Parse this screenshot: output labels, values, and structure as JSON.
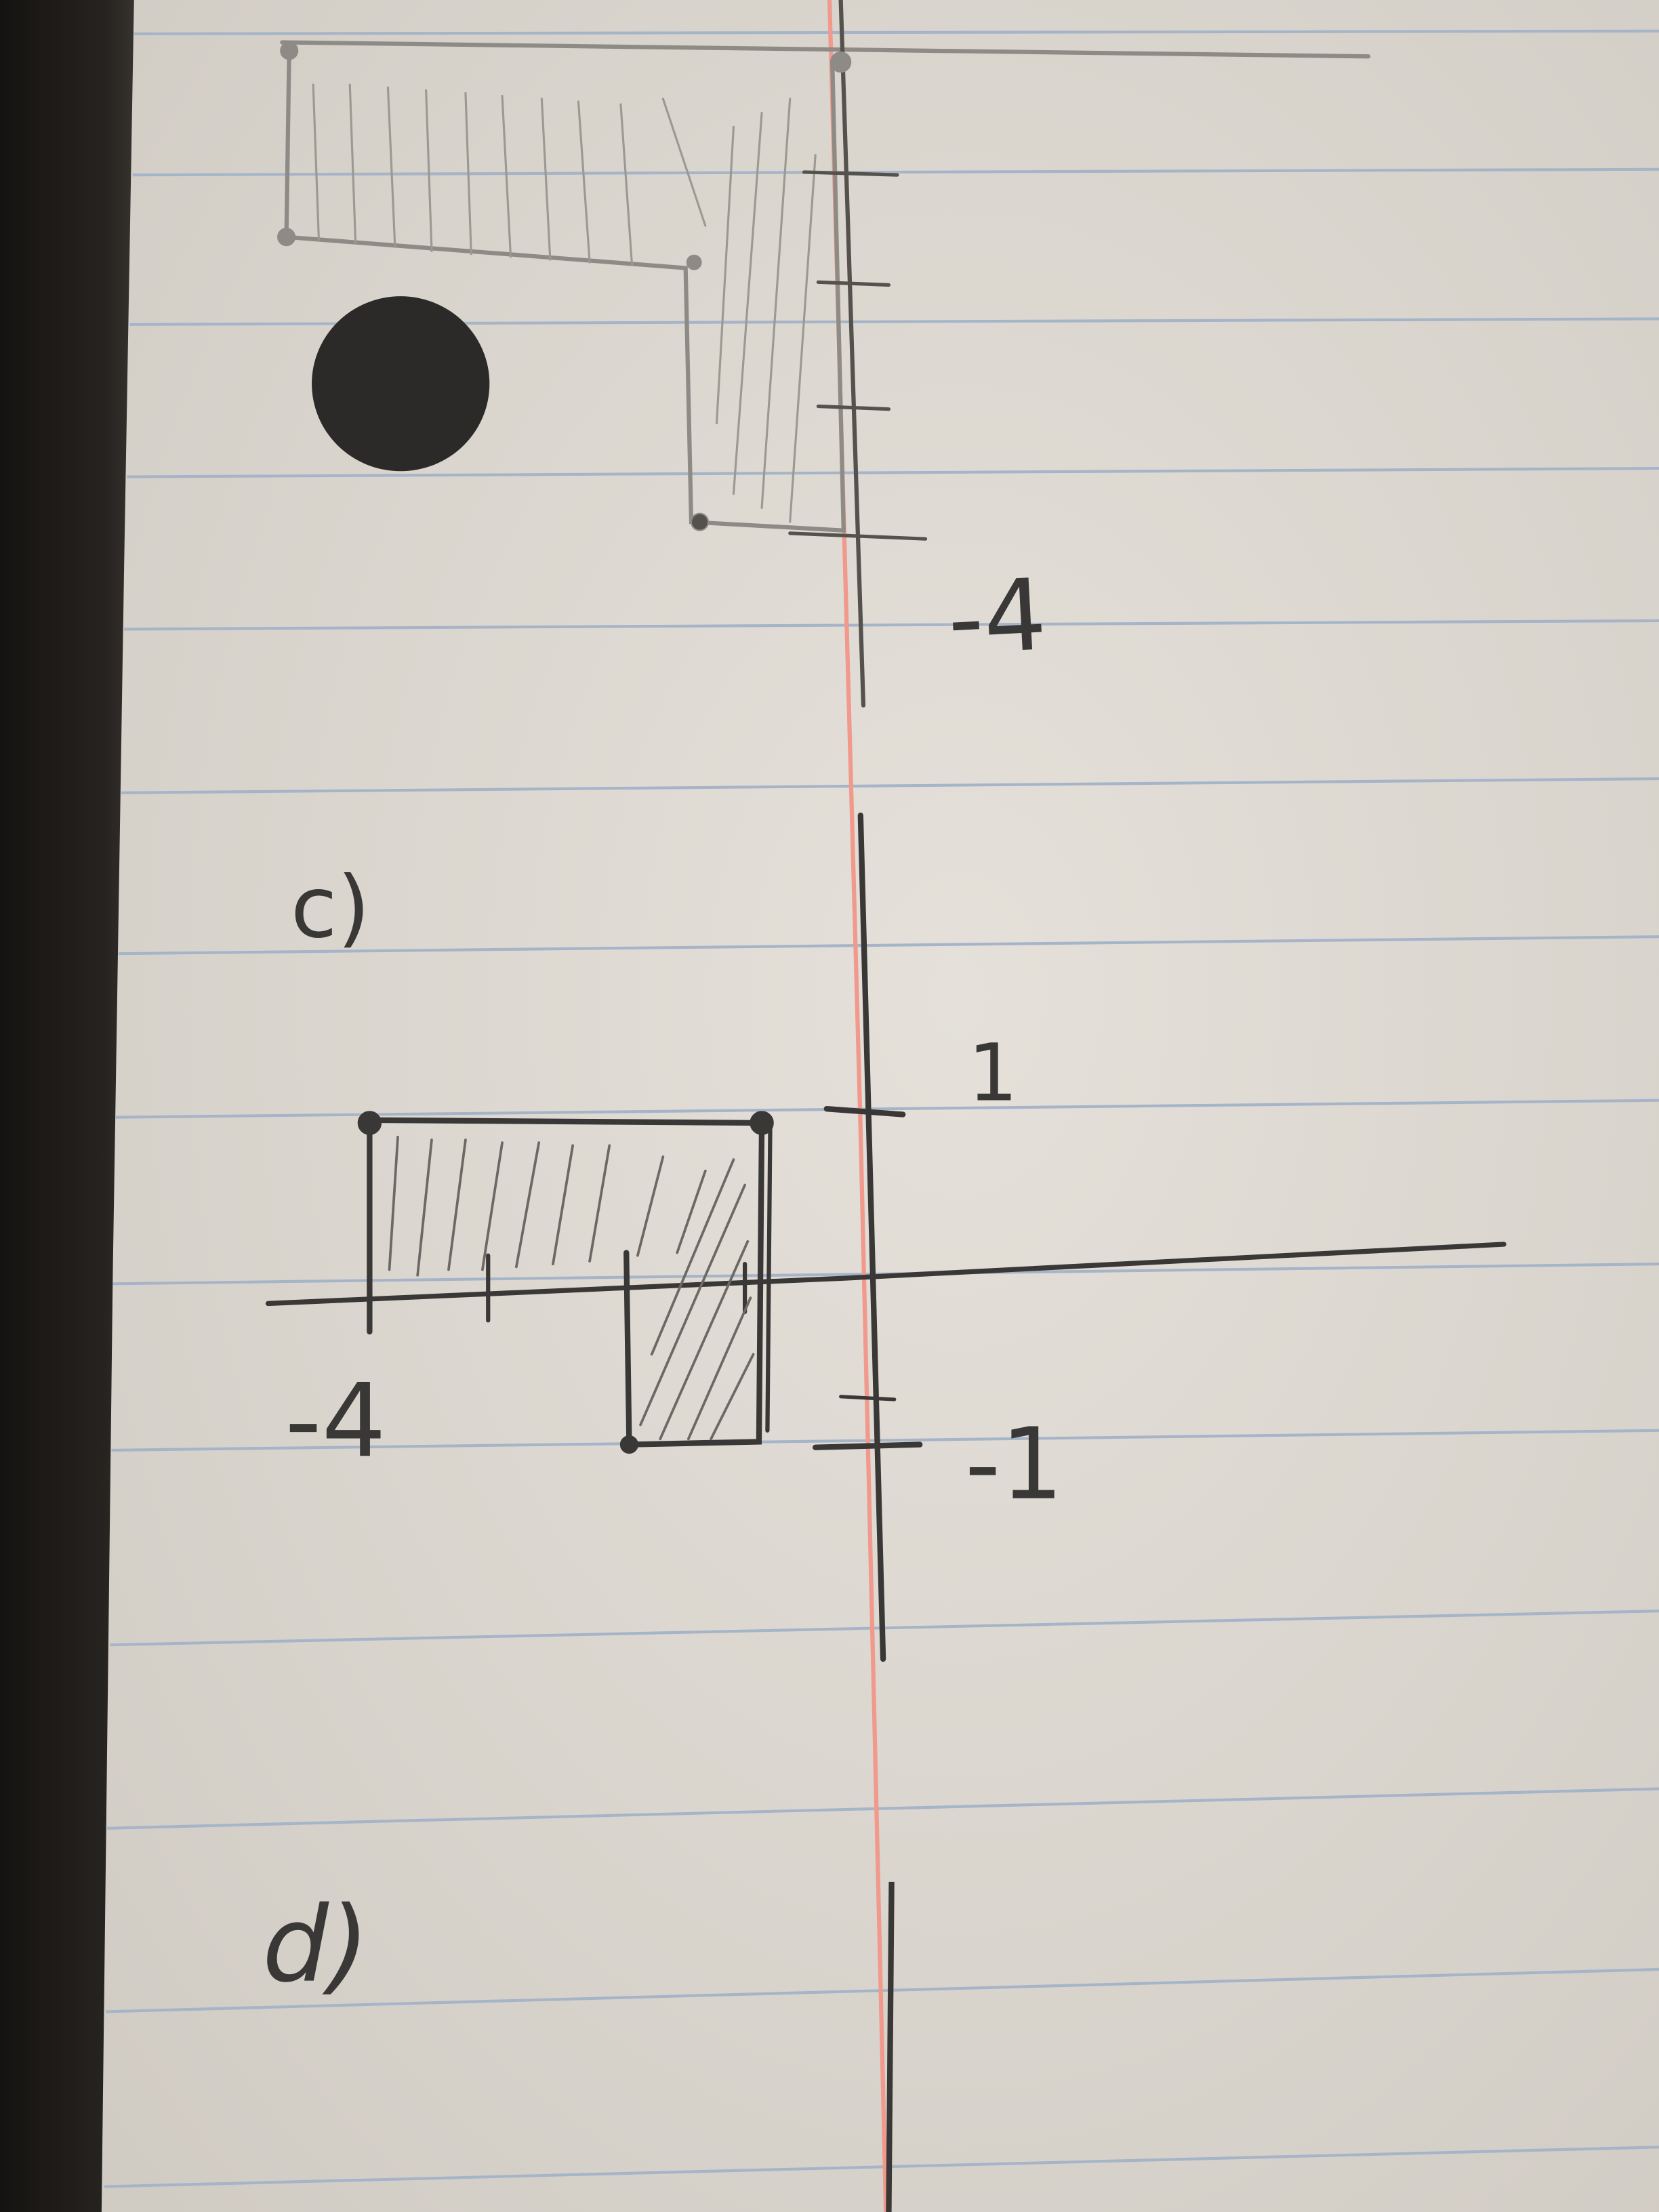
{
  "photo": {
    "colors": {
      "paper": "#dedad3",
      "rule_lines": "#a6b4c8",
      "margin_line": "#f0998c",
      "graphite": "#3a3836",
      "background": "#1a1816"
    }
  },
  "top_sketch": {
    "axis_label": "-4"
  },
  "sketch_c": {
    "part_label": "c)",
    "x_axis_label": "-4",
    "y_axis_top_label": "1",
    "y_axis_bottom_label": "-1"
  },
  "sketch_d": {
    "part_label": "d)"
  }
}
